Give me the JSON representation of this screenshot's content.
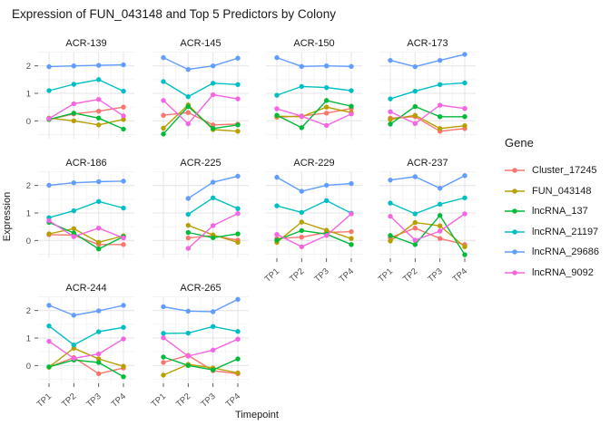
{
  "title": "Expression of FUN_043148 and Top 5 Predictors by Colony",
  "axes": {
    "x_label": "Timepoint",
    "y_label": "Expression",
    "x_tick_labels": [
      "TP1",
      "TP2",
      "TP3",
      "TP4"
    ],
    "y_tick_labels": [
      "0",
      "1",
      "2"
    ]
  },
  "legend": {
    "title": "Gene"
  },
  "chart_data": {
    "type": "line",
    "title": "Expression of FUN_043148 and Top 5 Predictors by Colony",
    "xlabel": "Timepoint",
    "ylabel": "Expression",
    "legend_title": "Gene",
    "x": [
      "TP1",
      "TP2",
      "TP3",
      "TP4"
    ],
    "yticks": [
      0,
      1,
      2
    ],
    "ylim": [
      -0.65,
      2.49
    ],
    "grid": "on",
    "legend_position": "right",
    "series": [
      {
        "name": "Cluster_17245",
        "color": "#F8766D"
      },
      {
        "name": "FUN_043148",
        "color": "#B79F00"
      },
      {
        "name": "lncRNA_137",
        "color": "#00BA38"
      },
      {
        "name": "lncRNA_21197",
        "color": "#00BFC4"
      },
      {
        "name": "lncRNA_29686",
        "color": "#619CFF"
      },
      {
        "name": "lncRNA_9092",
        "color": "#F564E2"
      }
    ],
    "facets": [
      {
        "name": "ACR-139",
        "values": {
          "Cluster_17245": [
            0.05,
            0.25,
            0.35,
            0.5
          ],
          "FUN_043148": [
            0.1,
            0.0,
            -0.15,
            0.05
          ],
          "lncRNA_137": [
            0.05,
            0.28,
            0.1,
            -0.3
          ],
          "lncRNA_21197": [
            1.1,
            1.33,
            1.5,
            1.08
          ],
          "lncRNA_29686": [
            1.97,
            2.0,
            2.02,
            2.04
          ],
          "lncRNA_9092": [
            0.08,
            0.62,
            0.78,
            0.18
          ]
        }
      },
      {
        "name": "ACR-145",
        "values": {
          "Cluster_17245": [
            0.2,
            0.3,
            -0.15,
            -0.12
          ],
          "FUN_043148": [
            -0.27,
            0.58,
            -0.32,
            -0.38
          ],
          "lncRNA_137": [
            -0.48,
            0.52,
            -0.28,
            -0.15
          ],
          "lncRNA_21197": [
            1.43,
            0.88,
            1.37,
            1.32
          ],
          "lncRNA_29686": [
            2.3,
            1.87,
            2.0,
            2.28
          ],
          "lncRNA_9092": [
            0.74,
            -0.11,
            0.95,
            0.8
          ]
        }
      },
      {
        "name": "ACR-150",
        "values": {
          "Cluster_17245": [
            0.13,
            0.18,
            0.28,
            0.45
          ],
          "FUN_043148": [
            0.17,
            0.15,
            0.5,
            0.3
          ],
          "lncRNA_137": [
            0.2,
            -0.25,
            0.74,
            0.53
          ],
          "lncRNA_21197": [
            0.93,
            1.25,
            1.21,
            1.1
          ],
          "lncRNA_29686": [
            2.3,
            1.98,
            2.0,
            1.98
          ],
          "lncRNA_9092": [
            0.44,
            0.17,
            -0.17,
            0.25
          ]
        }
      },
      {
        "name": "ACR-173",
        "values": {
          "Cluster_17245": [
            0.1,
            0.15,
            -0.38,
            -0.28
          ],
          "FUN_043148": [
            0.05,
            0.2,
            -0.28,
            -0.18
          ],
          "lncRNA_137": [
            -0.12,
            0.52,
            0.15,
            0.15
          ],
          "lncRNA_21197": [
            0.8,
            1.08,
            1.32,
            1.38
          ],
          "lncRNA_29686": [
            2.2,
            1.97,
            2.2,
            2.42
          ],
          "lncRNA_9092": [
            0.33,
            -0.1,
            0.57,
            0.45
          ]
        }
      },
      {
        "name": "ACR-186",
        "values": {
          "Cluster_17245": [
            0.21,
            0.19,
            -0.15,
            -0.15
          ],
          "FUN_043148": [
            0.24,
            0.43,
            -0.07,
            0.17
          ],
          "lncRNA_137": [
            0.66,
            0.27,
            -0.31,
            0.14
          ],
          "lncRNA_21197": [
            0.83,
            1.08,
            1.42,
            1.18
          ],
          "lncRNA_29686": [
            2.01,
            2.1,
            2.14,
            2.16
          ],
          "lncRNA_9092": [
            0.72,
            0.14,
            0.45,
            0.09
          ]
        }
      },
      {
        "name": "ACR-225",
        "values": {
          "Cluster_17245": [
            null,
            0.09,
            0.18,
            0.01
          ],
          "FUN_043148": [
            null,
            0.55,
            0.2,
            -0.07
          ],
          "lncRNA_137": [
            null,
            0.29,
            0.1,
            0.24
          ],
          "lncRNA_21197": [
            null,
            0.95,
            1.55,
            1.16
          ],
          "lncRNA_29686": [
            null,
            1.53,
            2.12,
            2.34
          ],
          "lncRNA_9092": [
            null,
            -0.29,
            0.54,
            0.98
          ]
        }
      },
      {
        "name": "ACR-229",
        "values": {
          "Cluster_17245": [
            0.07,
            0.12,
            0.29,
            0.32
          ],
          "FUN_043148": [
            -0.07,
            0.67,
            0.37,
            0.07
          ],
          "lncRNA_137": [
            0.01,
            0.36,
            0.23,
            -0.15
          ],
          "lncRNA_21197": [
            1.26,
            1.02,
            1.45,
            0.99
          ],
          "lncRNA_29686": [
            2.3,
            1.79,
            2.01,
            2.07
          ],
          "lncRNA_9092": [
            0.22,
            -0.23,
            0.18,
            0.97
          ]
        }
      },
      {
        "name": "ACR-237",
        "values": {
          "Cluster_17245": [
            0.1,
            0.45,
            0.07,
            -0.15
          ],
          "FUN_043148": [
            -0.02,
            0.65,
            0.53,
            -0.23
          ],
          "lncRNA_137": [
            0.18,
            -0.15,
            0.91,
            -0.52
          ],
          "lncRNA_21197": [
            1.36,
            0.97,
            1.32,
            1.55
          ],
          "lncRNA_29686": [
            2.2,
            2.32,
            1.9,
            2.36
          ],
          "lncRNA_9092": [
            0.88,
            0.01,
            0.34,
            0.97
          ]
        }
      },
      {
        "name": "ACR-244",
        "values": {
          "Cluster_17245": [
            -0.06,
            0.29,
            -0.3,
            -0.09
          ],
          "FUN_043148": [
            -0.06,
            0.63,
            0.24,
            -0.03
          ],
          "lncRNA_137": [
            -0.05,
            0.2,
            0.11,
            -0.41
          ],
          "lncRNA_21197": [
            1.44,
            0.75,
            1.23,
            1.39
          ],
          "lncRNA_29686": [
            2.19,
            1.83,
            1.99,
            2.19
          ],
          "lncRNA_9092": [
            0.88,
            0.26,
            0.42,
            0.97
          ]
        }
      },
      {
        "name": "ACR-265",
        "values": {
          "Cluster_17245": [
            0.11,
            0.37,
            -0.19,
            -0.3
          ],
          "FUN_043148": [
            -0.35,
            0.04,
            -0.09,
            -0.27
          ],
          "lncRNA_137": [
            0.31,
            0.0,
            -0.16,
            0.24
          ],
          "lncRNA_21197": [
            1.17,
            1.18,
            1.42,
            1.24
          ],
          "lncRNA_29686": [
            2.14,
            1.98,
            1.96,
            2.41
          ],
          "lncRNA_9092": [
            1.01,
            0.34,
            0.56,
            0.96
          ]
        }
      }
    ]
  }
}
